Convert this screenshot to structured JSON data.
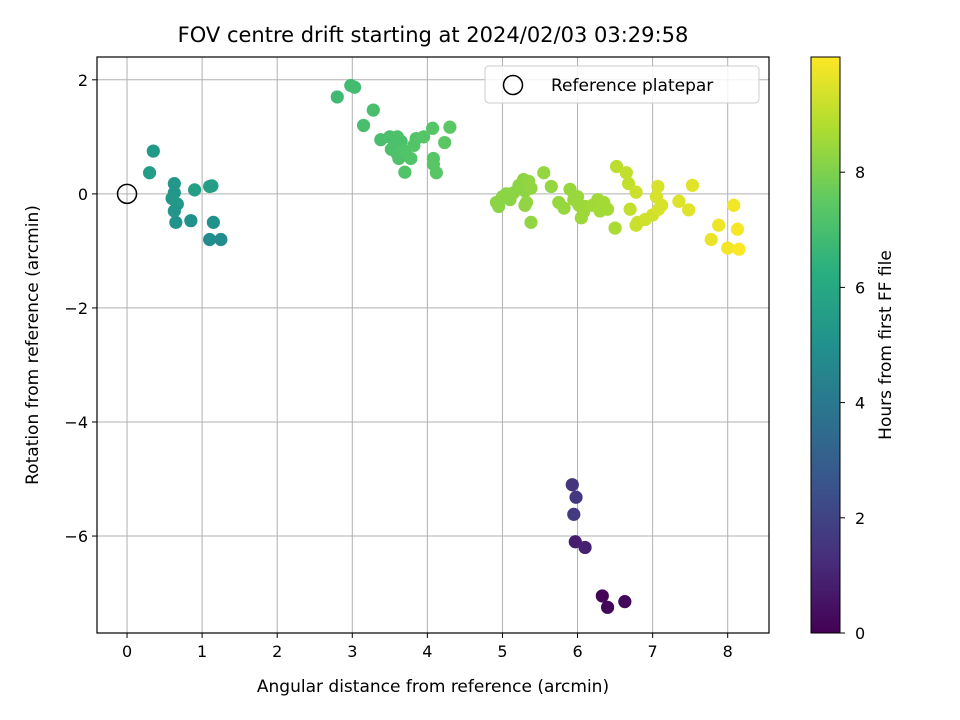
{
  "chart_data": {
    "type": "scatter",
    "title": "FOV centre drift starting at 2024/02/03 03:29:58",
    "xlabel": "Angular distance from reference (arcmin)",
    "ylabel": "Rotation from reference (arcmin)",
    "xlim": [
      -0.4,
      8.55
    ],
    "ylim": [
      -7.7,
      2.4
    ],
    "xticks": [
      0,
      1,
      2,
      3,
      4,
      5,
      6,
      7,
      8
    ],
    "yticks": [
      2,
      0,
      -2,
      -4,
      -6
    ],
    "grid": true,
    "legend": {
      "placement": "top-right",
      "entries": [
        "Reference platepar"
      ]
    },
    "reference_point": {
      "x": 0,
      "y": 0
    },
    "colorbar": {
      "label": "Hours from first FF file",
      "colormap": "viridis",
      "range": [
        0,
        10
      ],
      "ticks": [
        0,
        2,
        4,
        6,
        8
      ]
    },
    "points": [
      {
        "x": 6.33,
        "y": -7.05,
        "h": 0.1
      },
      {
        "x": 6.4,
        "y": -7.25,
        "h": 0.15
      },
      {
        "x": 6.63,
        "y": -7.15,
        "h": 0.2
      },
      {
        "x": 5.97,
        "y": -6.1,
        "h": 0.8
      },
      {
        "x": 6.1,
        "y": -6.2,
        "h": 0.9
      },
      {
        "x": 5.93,
        "y": -5.1,
        "h": 1.5
      },
      {
        "x": 5.98,
        "y": -5.32,
        "h": 1.6
      },
      {
        "x": 5.95,
        "y": -5.62,
        "h": 1.7
      },
      {
        "x": 0.35,
        "y": 0.75,
        "h": 5.4
      },
      {
        "x": 0.3,
        "y": 0.37,
        "h": 5.5
      },
      {
        "x": 0.63,
        "y": 0.18,
        "h": 5.3
      },
      {
        "x": 0.63,
        "y": 0.02,
        "h": 5.2
      },
      {
        "x": 0.6,
        "y": -0.08,
        "h": 5.3
      },
      {
        "x": 0.67,
        "y": -0.18,
        "h": 5.4
      },
      {
        "x": 0.63,
        "y": -0.3,
        "h": 5.2
      },
      {
        "x": 0.65,
        "y": -0.5,
        "h": 5.1
      },
      {
        "x": 0.85,
        "y": -0.47,
        "h": 5.0
      },
      {
        "x": 0.9,
        "y": 0.07,
        "h": 5.6
      },
      {
        "x": 1.1,
        "y": 0.13,
        "h": 5.7
      },
      {
        "x": 1.13,
        "y": 0.14,
        "h": 5.6
      },
      {
        "x": 1.15,
        "y": -0.5,
        "h": 5.0
      },
      {
        "x": 1.1,
        "y": -0.8,
        "h": 4.8
      },
      {
        "x": 1.25,
        "y": -0.8,
        "h": 4.8
      },
      {
        "x": 2.8,
        "y": 1.7,
        "h": 6.8
      },
      {
        "x": 2.98,
        "y": 1.9,
        "h": 6.85
      },
      {
        "x": 3.03,
        "y": 1.87,
        "h": 6.9
      },
      {
        "x": 3.28,
        "y": 1.47,
        "h": 7.0
      },
      {
        "x": 3.15,
        "y": 1.2,
        "h": 7.0
      },
      {
        "x": 3.38,
        "y": 0.95,
        "h": 7.0
      },
      {
        "x": 3.5,
        "y": 1.0,
        "h": 7.05
      },
      {
        "x": 3.55,
        "y": 0.95,
        "h": 7.05
      },
      {
        "x": 3.6,
        "y": 1.0,
        "h": 7.1
      },
      {
        "x": 3.65,
        "y": 0.92,
        "h": 7.1
      },
      {
        "x": 3.52,
        "y": 0.78,
        "h": 7.1
      },
      {
        "x": 3.6,
        "y": 0.7,
        "h": 7.15
      },
      {
        "x": 3.62,
        "y": 0.62,
        "h": 7.15
      },
      {
        "x": 3.7,
        "y": 0.75,
        "h": 7.2
      },
      {
        "x": 3.78,
        "y": 0.62,
        "h": 7.2
      },
      {
        "x": 3.7,
        "y": 0.38,
        "h": 7.2
      },
      {
        "x": 3.82,
        "y": 0.85,
        "h": 7.25
      },
      {
        "x": 3.85,
        "y": 0.97,
        "h": 7.25
      },
      {
        "x": 3.95,
        "y": 1.0,
        "h": 7.3
      },
      {
        "x": 4.07,
        "y": 1.15,
        "h": 7.3
      },
      {
        "x": 4.08,
        "y": 0.62,
        "h": 7.3
      },
      {
        "x": 4.08,
        "y": 0.52,
        "h": 7.35
      },
      {
        "x": 4.12,
        "y": 0.37,
        "h": 7.35
      },
      {
        "x": 4.23,
        "y": 0.9,
        "h": 7.4
      },
      {
        "x": 4.3,
        "y": 1.17,
        "h": 7.4
      },
      {
        "x": 4.92,
        "y": -0.15,
        "h": 8.2
      },
      {
        "x": 4.95,
        "y": -0.22,
        "h": 8.2
      },
      {
        "x": 5.0,
        "y": -0.05,
        "h": 8.2
      },
      {
        "x": 5.05,
        "y": 0.0,
        "h": 8.2
      },
      {
        "x": 5.1,
        "y": -0.1,
        "h": 8.2
      },
      {
        "x": 5.15,
        "y": 0.02,
        "h": 8.25
      },
      {
        "x": 5.22,
        "y": 0.15,
        "h": 8.25
      },
      {
        "x": 5.28,
        "y": 0.25,
        "h": 8.25
      },
      {
        "x": 5.3,
        "y": 0.05,
        "h": 8.25
      },
      {
        "x": 5.35,
        "y": 0.22,
        "h": 8.3
      },
      {
        "x": 5.32,
        "y": -0.15,
        "h": 8.3
      },
      {
        "x": 5.38,
        "y": 0.1,
        "h": 8.3
      },
      {
        "x": 5.3,
        "y": -0.2,
        "h": 8.3
      },
      {
        "x": 5.38,
        "y": -0.5,
        "h": 8.3
      },
      {
        "x": 5.55,
        "y": 0.37,
        "h": 8.35
      },
      {
        "x": 5.65,
        "y": 0.13,
        "h": 8.35
      },
      {
        "x": 5.75,
        "y": -0.15,
        "h": 8.4
      },
      {
        "x": 5.82,
        "y": -0.25,
        "h": 8.4
      },
      {
        "x": 5.9,
        "y": 0.08,
        "h": 8.4
      },
      {
        "x": 5.95,
        "y": -0.1,
        "h": 8.45
      },
      {
        "x": 6.0,
        "y": -0.05,
        "h": 8.45
      },
      {
        "x": 6.02,
        "y": -0.2,
        "h": 8.45
      },
      {
        "x": 6.05,
        "y": -0.42,
        "h": 8.5
      },
      {
        "x": 6.08,
        "y": -0.32,
        "h": 8.5
      },
      {
        "x": 6.1,
        "y": -0.22,
        "h": 8.5
      },
      {
        "x": 6.2,
        "y": -0.2,
        "h": 8.55
      },
      {
        "x": 6.27,
        "y": -0.1,
        "h": 8.55
      },
      {
        "x": 6.3,
        "y": -0.3,
        "h": 8.6
      },
      {
        "x": 6.35,
        "y": -0.15,
        "h": 8.6
      },
      {
        "x": 6.4,
        "y": -0.27,
        "h": 8.6
      },
      {
        "x": 6.5,
        "y": -0.6,
        "h": 8.7
      },
      {
        "x": 6.52,
        "y": 0.48,
        "h": 9.0
      },
      {
        "x": 6.65,
        "y": 0.37,
        "h": 9.1
      },
      {
        "x": 6.68,
        "y": 0.18,
        "h": 9.1
      },
      {
        "x": 6.7,
        "y": -0.27,
        "h": 9.1
      },
      {
        "x": 6.78,
        "y": 0.03,
        "h": 9.2
      },
      {
        "x": 6.78,
        "y": -0.55,
        "h": 9.2
      },
      {
        "x": 6.8,
        "y": -0.5,
        "h": 9.2
      },
      {
        "x": 6.9,
        "y": -0.45,
        "h": 9.3
      },
      {
        "x": 7.0,
        "y": -0.37,
        "h": 9.3
      },
      {
        "x": 7.05,
        "y": -0.05,
        "h": 9.4
      },
      {
        "x": 7.07,
        "y": 0.13,
        "h": 9.4
      },
      {
        "x": 7.08,
        "y": -0.27,
        "h": 9.4
      },
      {
        "x": 7.12,
        "y": -0.2,
        "h": 9.4
      },
      {
        "x": 7.35,
        "y": -0.13,
        "h": 9.5
      },
      {
        "x": 7.48,
        "y": -0.28,
        "h": 9.55
      },
      {
        "x": 7.53,
        "y": 0.15,
        "h": 9.55
      },
      {
        "x": 7.78,
        "y": -0.8,
        "h": 9.7
      },
      {
        "x": 7.88,
        "y": -0.55,
        "h": 9.75
      },
      {
        "x": 8.0,
        "y": -0.95,
        "h": 9.85
      },
      {
        "x": 8.08,
        "y": -0.2,
        "h": 9.85
      },
      {
        "x": 8.13,
        "y": -0.62,
        "h": 9.9
      },
      {
        "x": 8.15,
        "y": -0.97,
        "h": 9.95
      }
    ]
  }
}
